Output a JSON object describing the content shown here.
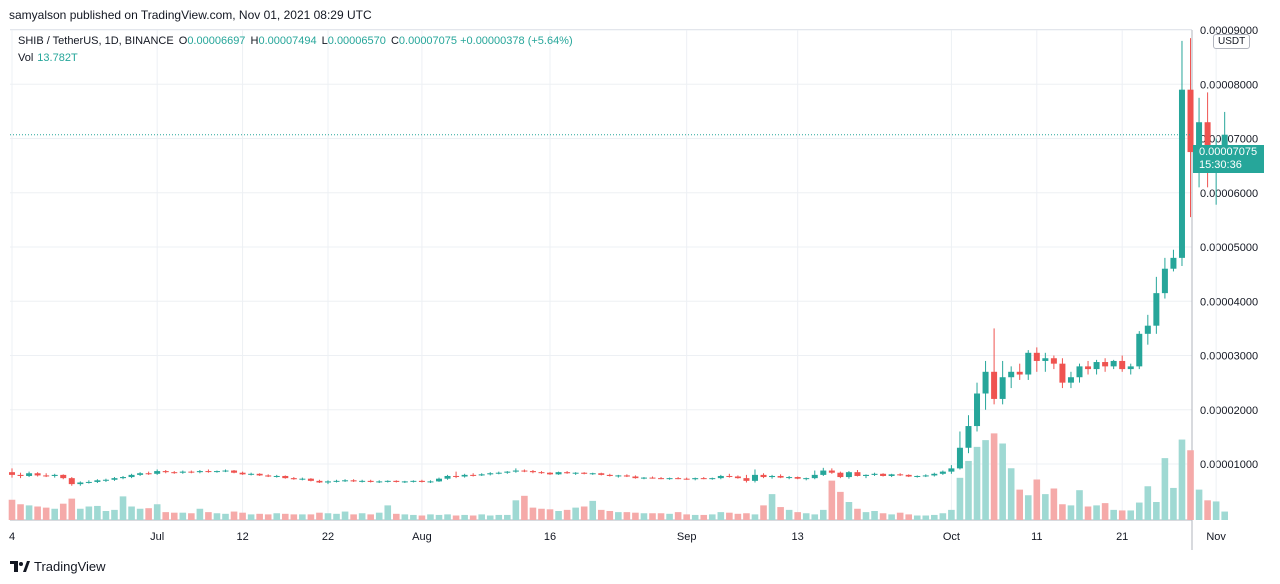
{
  "header": {
    "published": "samyalson published on TradingView.com, Nov 01, 2021 08:29 UTC"
  },
  "legend": {
    "symbol": "SHIB / TetherUS, 1D, BINANCE",
    "o_label": "O",
    "o_value": "0.00006697",
    "h_label": "H",
    "h_value": "0.00007494",
    "l_label": "L",
    "l_value": "0.00006570",
    "c_label": "C",
    "c_value": "0.00007075",
    "change": "+0.00000378 (+5.64%)",
    "vol_label": "Vol",
    "vol_value": "13.782T"
  },
  "currency_badge": "USDT",
  "last_price": {
    "value": "0.00007075",
    "countdown": "15:30:36"
  },
  "footer": {
    "brand": "TradingView",
    "brand_icon": "tradingview-logo-icon"
  },
  "colors": {
    "up": "#26a69a",
    "down": "#ef5350",
    "up_volume": "#9fd9d3",
    "down_volume": "#f5aaa9",
    "grid": "#edf0f4"
  },
  "chart_data": {
    "type": "candlestick",
    "y_axis_labels": [
      "0.00009000",
      "0.00008000",
      "0.00007000",
      "0.00006000",
      "0.00005000",
      "0.00004000",
      "0.00003000",
      "0.00002000",
      "0.00001000"
    ],
    "y_ticks": [
      9e-05,
      8e-05,
      7e-05,
      6e-05,
      5e-05,
      4e-05,
      3e-05,
      2e-05,
      1e-05
    ],
    "ylim": [
      -5e-07,
      9e-05
    ],
    "x_tick_labels": [
      "4",
      "Jul",
      "12",
      "22",
      "Aug",
      "16",
      "Sep",
      "13",
      "Oct",
      "11",
      "21",
      "Nov"
    ],
    "x_tick_index": [
      0,
      17,
      27,
      37,
      48,
      63,
      79,
      92,
      110,
      120,
      130,
      141
    ],
    "candles": [
      [
        8.5e-06,
        9.2e-06,
        7.5e-06,
        8e-06
      ],
      [
        8e-06,
        8.4e-06,
        7.4e-06,
        7.8e-06
      ],
      [
        7.8e-06,
        8.6e-06,
        7.6e-06,
        8.3e-06
      ],
      [
        8.3e-06,
        8.5e-06,
        7.7e-06,
        7.9e-06
      ],
      [
        7.9e-06,
        8.3e-06,
        7.6e-06,
        7.8e-06
      ],
      [
        7.8e-06,
        8.2e-06,
        7.5e-06,
        8e-06
      ],
      [
        8e-06,
        8.1e-06,
        7.2e-06,
        7.4e-06
      ],
      [
        7.4e-06,
        7.6e-06,
        6e-06,
        6.3e-06
      ],
      [
        6.3e-06,
        6.8e-06,
        6e-06,
        6.6e-06
      ],
      [
        6.6e-06,
        7e-06,
        6.4e-06,
        6.7e-06
      ],
      [
        6.7e-06,
        7.2e-06,
        6.5e-06,
        7e-06
      ],
      [
        7e-06,
        7.3e-06,
        6.7e-06,
        7.1e-06
      ],
      [
        7.1e-06,
        7.6e-06,
        6.9e-06,
        7.4e-06
      ],
      [
        7.4e-06,
        7.8e-06,
        7.2e-06,
        7.6e-06
      ],
      [
        7.6e-06,
        8.2e-06,
        7.4e-06,
        8e-06
      ],
      [
        8e-06,
        8.5e-06,
        7.8e-06,
        8.3e-06
      ],
      [
        8.3e-06,
        8.6e-06,
        8e-06,
        8.2e-06
      ],
      [
        8.2e-06,
        9e-06,
        8e-06,
        8.7e-06
      ],
      [
        8.7e-06,
        8.9e-06,
        8.3e-06,
        8.5e-06
      ],
      [
        8.5e-06,
        8.7e-06,
        8.2e-06,
        8.4e-06
      ],
      [
        8.4e-06,
        8.8e-06,
        8.2e-06,
        8.6e-06
      ],
      [
        8.6e-06,
        8.8e-06,
        8.3e-06,
        8.5e-06
      ],
      [
        8.5e-06,
        8.9e-06,
        8.3e-06,
        8.7e-06
      ],
      [
        8.7e-06,
        9e-06,
        8.4e-06,
        8.6e-06
      ],
      [
        8.6e-06,
        8.8e-06,
        8.4e-06,
        8.7e-06
      ],
      [
        8.7e-06,
        9e-06,
        8.5e-06,
        8.8e-06
      ],
      [
        8.8e-06,
        8.9e-06,
        8.3e-06,
        8.4e-06
      ],
      [
        8.4e-06,
        8.6e-06,
        8e-06,
        8.1e-06
      ],
      [
        8.1e-06,
        8.4e-06,
        7.9e-06,
        8.2e-06
      ],
      [
        8.2e-06,
        8.3e-06,
        7.8e-06,
        7.9e-06
      ],
      [
        7.9e-06,
        8.1e-06,
        7.6e-06,
        7.7e-06
      ],
      [
        7.7e-06,
        8e-06,
        7.5e-06,
        7.8e-06
      ],
      [
        7.8e-06,
        7.9e-06,
        7.3e-06,
        7.4e-06
      ],
      [
        7.4e-06,
        7.6e-06,
        7.1e-06,
        7.2e-06
      ],
      [
        7.2e-06,
        7.5e-06,
        7e-06,
        7.3e-06
      ],
      [
        7.3e-06,
        7.4e-06,
        6.8e-06,
        6.9e-06
      ],
      [
        6.9e-06,
        7.1e-06,
        6.5e-06,
        6.6e-06
      ],
      [
        6.6e-06,
        7e-06,
        6.3e-06,
        6.8e-06
      ],
      [
        6.8e-06,
        7.1e-06,
        6.6e-06,
        6.9e-06
      ],
      [
        6.9e-06,
        7.2e-06,
        6.7e-06,
        7e-06
      ],
      [
        7e-06,
        7.2e-06,
        6.7e-06,
        6.8e-06
      ],
      [
        6.8e-06,
        7.1e-06,
        6.6e-06,
        6.9e-06
      ],
      [
        6.9e-06,
        7.1e-06,
        6.6e-06,
        6.7e-06
      ],
      [
        6.7e-06,
        7e-06,
        6.5e-06,
        6.8e-06
      ],
      [
        6.8e-06,
        7e-06,
        6.6e-06,
        6.9e-06
      ],
      [
        6.9e-06,
        7e-06,
        6.6e-06,
        6.7e-06
      ],
      [
        6.7e-06,
        6.9e-06,
        6.5e-06,
        6.8e-06
      ],
      [
        6.8e-06,
        7e-06,
        6.6e-06,
        6.9e-06
      ],
      [
        6.9e-06,
        7.1e-06,
        6.6e-06,
        6.7e-06
      ],
      [
        6.7e-06,
        7e-06,
        6.5e-06,
        6.8e-06
      ],
      [
        6.8e-06,
        7.5e-06,
        6.7e-06,
        7.3e-06
      ],
      [
        7.3e-06,
        8e-06,
        7.1e-06,
        7.8e-06
      ],
      [
        7.8e-06,
        8.6e-06,
        7.4e-06,
        7.7e-06
      ],
      [
        7.7e-06,
        8.2e-06,
        7.5e-06,
        8e-06
      ],
      [
        8e-06,
        8.3e-06,
        7.7e-06,
        7.9e-06
      ],
      [
        7.9e-06,
        8.3e-06,
        7.8e-06,
        8.1e-06
      ],
      [
        8.1e-06,
        8.5e-06,
        7.9e-06,
        8.3e-06
      ],
      [
        8.3e-06,
        8.6e-06,
        8.1e-06,
        8.4e-06
      ],
      [
        8.4e-06,
        8.7e-06,
        8.2e-06,
        8.6e-06
      ],
      [
        8.6e-06,
        9.2e-06,
        8.4e-06,
        8.8e-06
      ],
      [
        8.8e-06,
        9e-06,
        8.5e-06,
        8.7e-06
      ],
      [
        8.7e-06,
        8.9e-06,
        8.3e-06,
        8.5e-06
      ],
      [
        8.5e-06,
        8.7e-06,
        8.2e-06,
        8.4e-06
      ],
      [
        8.4e-06,
        8.5e-06,
        8e-06,
        8.1e-06
      ],
      [
        8.1e-06,
        8.6e-06,
        8e-06,
        8.5e-06
      ],
      [
        8.5e-06,
        8.7e-06,
        8.2e-06,
        8.3e-06
      ],
      [
        8.3e-06,
        8.5e-06,
        8e-06,
        8.4e-06
      ],
      [
        8.4e-06,
        8.5e-06,
        8.1e-06,
        8.2e-06
      ],
      [
        8.2e-06,
        8.4e-06,
        8e-06,
        8.3e-06
      ],
      [
        8.3e-06,
        8.4e-06,
        7.9e-06,
        8e-06
      ],
      [
        8e-06,
        8.2e-06,
        7.7e-06,
        7.8e-06
      ],
      [
        7.8e-06,
        8e-06,
        7.5e-06,
        7.9e-06
      ],
      [
        7.9e-06,
        8.1e-06,
        7.6e-06,
        7.7e-06
      ],
      [
        7.7e-06,
        7.9e-06,
        7.3e-06,
        7.4e-06
      ],
      [
        7.4e-06,
        7.6e-06,
        7.2e-06,
        7.5e-06
      ],
      [
        7.5e-06,
        7.7e-06,
        7.3e-06,
        7.4e-06
      ],
      [
        7.4e-06,
        7.6e-06,
        7.2e-06,
        7.3e-06
      ],
      [
        7.3e-06,
        7.5e-06,
        7.1e-06,
        7.4e-06
      ],
      [
        7.4e-06,
        7.6e-06,
        7.2e-06,
        7.3e-06
      ],
      [
        7.3e-06,
        7.5e-06,
        7.1e-06,
        7.2e-06
      ],
      [
        7.2e-06,
        7.5e-06,
        7e-06,
        7.4e-06
      ],
      [
        7.4e-06,
        7.6e-06,
        7.2e-06,
        7.3e-06
      ],
      [
        7.3e-06,
        7.5e-06,
        7.1e-06,
        7.4e-06
      ],
      [
        7.4e-06,
        8e-06,
        7.2e-06,
        7.8e-06
      ],
      [
        7.8e-06,
        8.2e-06,
        7.5e-06,
        7.7e-06
      ],
      [
        7.7e-06,
        7.9e-06,
        7.3e-06,
        7.4e-06
      ],
      [
        7.4e-06,
        8e-06,
        6.6e-06,
        6.9e-06
      ],
      [
        6.9e-06,
        9e-06,
        6.6e-06,
        8e-06
      ],
      [
        8e-06,
        8.3e-06,
        7.4e-06,
        7.6e-06
      ],
      [
        7.6e-06,
        8e-06,
        7.3e-06,
        7.8e-06
      ],
      [
        7.8e-06,
        8.1e-06,
        7.4e-06,
        7.5e-06
      ],
      [
        7.5e-06,
        7.8e-06,
        7.2e-06,
        7.6e-06
      ],
      [
        7.6e-06,
        7.7e-06,
        7.2e-06,
        7.3e-06
      ],
      [
        7.3e-06,
        7.5e-06,
        7e-06,
        7.4e-06
      ],
      [
        7.4e-06,
        8.8e-06,
        7.2e-06,
        8e-06
      ],
      [
        8e-06,
        9.3e-06,
        7.8e-06,
        8.8e-06
      ],
      [
        8.8e-06,
        9.2e-06,
        8.2e-06,
        8.4e-06
      ],
      [
        8.4e-06,
        8.6e-06,
        7.4e-06,
        7.6e-06
      ],
      [
        7.6e-06,
        8.7e-06,
        7.3e-06,
        8.5e-06
      ],
      [
        8.5e-06,
        8.9e-06,
        7.7e-06,
        7.8e-06
      ],
      [
        7.8e-06,
        8.1e-06,
        7.4e-06,
        8e-06
      ],
      [
        8e-06,
        8.4e-06,
        7.8e-06,
        8.2e-06
      ],
      [
        8.2e-06,
        8.3e-06,
        7.7e-06,
        7.8e-06
      ],
      [
        7.8e-06,
        8.2e-06,
        7.6e-06,
        8.1e-06
      ],
      [
        8.1e-06,
        8.3e-06,
        7.8e-06,
        8e-06
      ],
      [
        8e-06,
        8.1e-06,
        7.6e-06,
        7.7e-06
      ],
      [
        7.7e-06,
        7.9e-06,
        7.5e-06,
        7.8e-06
      ],
      [
        7.8e-06,
        8.1e-06,
        7.6e-06,
        7.9e-06
      ],
      [
        7.9e-06,
        8.4e-06,
        7.7e-06,
        8.2e-06
      ],
      [
        8.2e-06,
        8.8e-06,
        8e-06,
        8.6e-06
      ],
      [
        8.6e-06,
        9.8e-06,
        8.2e-06,
        9.2e-06
      ],
      [
        9.2e-06,
        1.6e-05,
        9e-06,
        1.3e-05
      ],
      [
        1.3e-05,
        1.9e-05,
        1.2e-05,
        1.7e-05
      ],
      [
        1.7e-05,
        2.5e-05,
        1.6e-05,
        2.3e-05
      ],
      [
        2.3e-05,
        2.9e-05,
        2e-05,
        2.7e-05
      ],
      [
        2.7e-05,
        3.5e-05,
        2.1e-05,
        2.2e-05
      ],
      [
        2.2e-05,
        2.9e-05,
        2.1e-05,
        2.6e-05
      ],
      [
        2.6e-05,
        2.8e-05,
        2.4e-05,
        2.7e-05
      ],
      [
        2.7e-05,
        2.85e-05,
        2.55e-05,
        2.65e-05
      ],
      [
        2.65e-05,
        3.1e-05,
        2.55e-05,
        3.05e-05
      ],
      [
        3.05e-05,
        3.15e-05,
        2.7e-05,
        2.9e-05
      ],
      [
        2.9e-05,
        3.05e-05,
        2.7e-05,
        2.95e-05
      ],
      [
        2.95e-05,
        3e-05,
        2.75e-05,
        2.85e-05
      ],
      [
        2.85e-05,
        2.95e-05,
        2.4e-05,
        2.5e-05
      ],
      [
        2.5e-05,
        2.7e-05,
        2.4e-05,
        2.6e-05
      ],
      [
        2.6e-05,
        2.85e-05,
        2.5e-05,
        2.8e-05
      ],
      [
        2.8e-05,
        2.9e-05,
        2.65e-05,
        2.75e-05
      ],
      [
        2.75e-05,
        2.92e-05,
        2.65e-05,
        2.88e-05
      ],
      [
        2.88e-05,
        2.95e-05,
        2.7e-05,
        2.8e-05
      ],
      [
        2.8e-05,
        2.92e-05,
        2.75e-05,
        2.9e-05
      ],
      [
        2.9e-05,
        3e-05,
        2.7e-05,
        2.75e-05
      ],
      [
        2.75e-05,
        2.85e-05,
        2.65e-05,
        2.8e-05
      ],
      [
        2.8e-05,
        3.45e-05,
        2.75e-05,
        3.4e-05
      ],
      [
        3.4e-05,
        3.75e-05,
        3.2e-05,
        3.55e-05
      ],
      [
        3.55e-05,
        4.45e-05,
        3.4e-05,
        4.15e-05
      ],
      [
        4.15e-05,
        4.8e-05,
        4.05e-05,
        4.6e-05
      ],
      [
        4.6e-05,
        4.95e-05,
        4.55e-05,
        4.8e-05
      ],
      [
        4.8e-05,
        8.8e-05,
        4.65e-05,
        7.9e-05
      ],
      [
        7.9e-05,
        8.85e-05,
        5.55e-05,
        6.75e-05
      ],
      [
        6.75e-05,
        7.75e-05,
        6.1e-05,
        7.3e-05
      ],
      [
        7.3e-05,
        7.85e-05,
        6.1e-05,
        6.4e-05
      ],
      [
        6.4e-05,
        7e-05,
        5.78e-05,
        6.6e-05
      ],
      [
        6.69e-05,
        7.49e-05,
        6.57e-05,
        7.07e-05
      ]
    ],
    "volume": [
      3.6,
      2.8,
      2.6,
      2.4,
      2.2,
      2.0,
      2.9,
      3.8,
      2.0,
      2.4,
      2.5,
      1.6,
      1.8,
      4.2,
      2.4,
      2.0,
      2.1,
      2.8,
      1.4,
      1.3,
      1.3,
      1.2,
      2.0,
      1.4,
      1.2,
      1.1,
      1.5,
      1.3,
      1.0,
      1.1,
      1.0,
      1.2,
      1.1,
      1.0,
      1.0,
      1.0,
      1.3,
      1.2,
      1.1,
      1.5,
      1.0,
      1.2,
      1.0,
      1.3,
      2.6,
      1.1,
      1.0,
      0.9,
      0.8,
      1.0,
      0.9,
      1.0,
      0.8,
      0.9,
      0.8,
      1.0,
      0.8,
      0.9,
      0.9,
      3.5,
      4.3,
      2.2,
      2.0,
      1.9,
      1.6,
      1.8,
      2.2,
      2.4,
      3.4,
      1.8,
      1.6,
      1.4,
      1.4,
      1.3,
      1.2,
      1.2,
      1.2,
      1.1,
      1.4,
      1.0,
      0.9,
      0.9,
      1.0,
      1.4,
      1.3,
      1.1,
      1.2,
      1.0,
      2.6,
      4.6,
      2.3,
      1.8,
      1.4,
      1.2,
      1.0,
      1.8,
      7.0,
      5.0,
      3.2,
      2.0,
      1.4,
      1.6,
      1.2,
      1.0,
      1.3,
      1.0,
      0.8,
      0.8,
      0.9,
      1.2,
      1.8,
      7.5,
      10.5,
      13.0,
      14.2,
      15.4,
      13.6,
      9.2,
      5.4,
      4.4,
      7.2,
      4.6,
      5.6,
      2.8,
      2.6,
      5.3,
      2.4,
      2.6,
      3.0,
      1.8,
      1.7,
      1.7,
      3.1,
      6.0,
      3.2,
      11.0,
      5.7,
      14.3,
      12.4,
      5.4,
      3.5,
      3.3,
      1.5
    ],
    "volume_max": 16.0
  }
}
